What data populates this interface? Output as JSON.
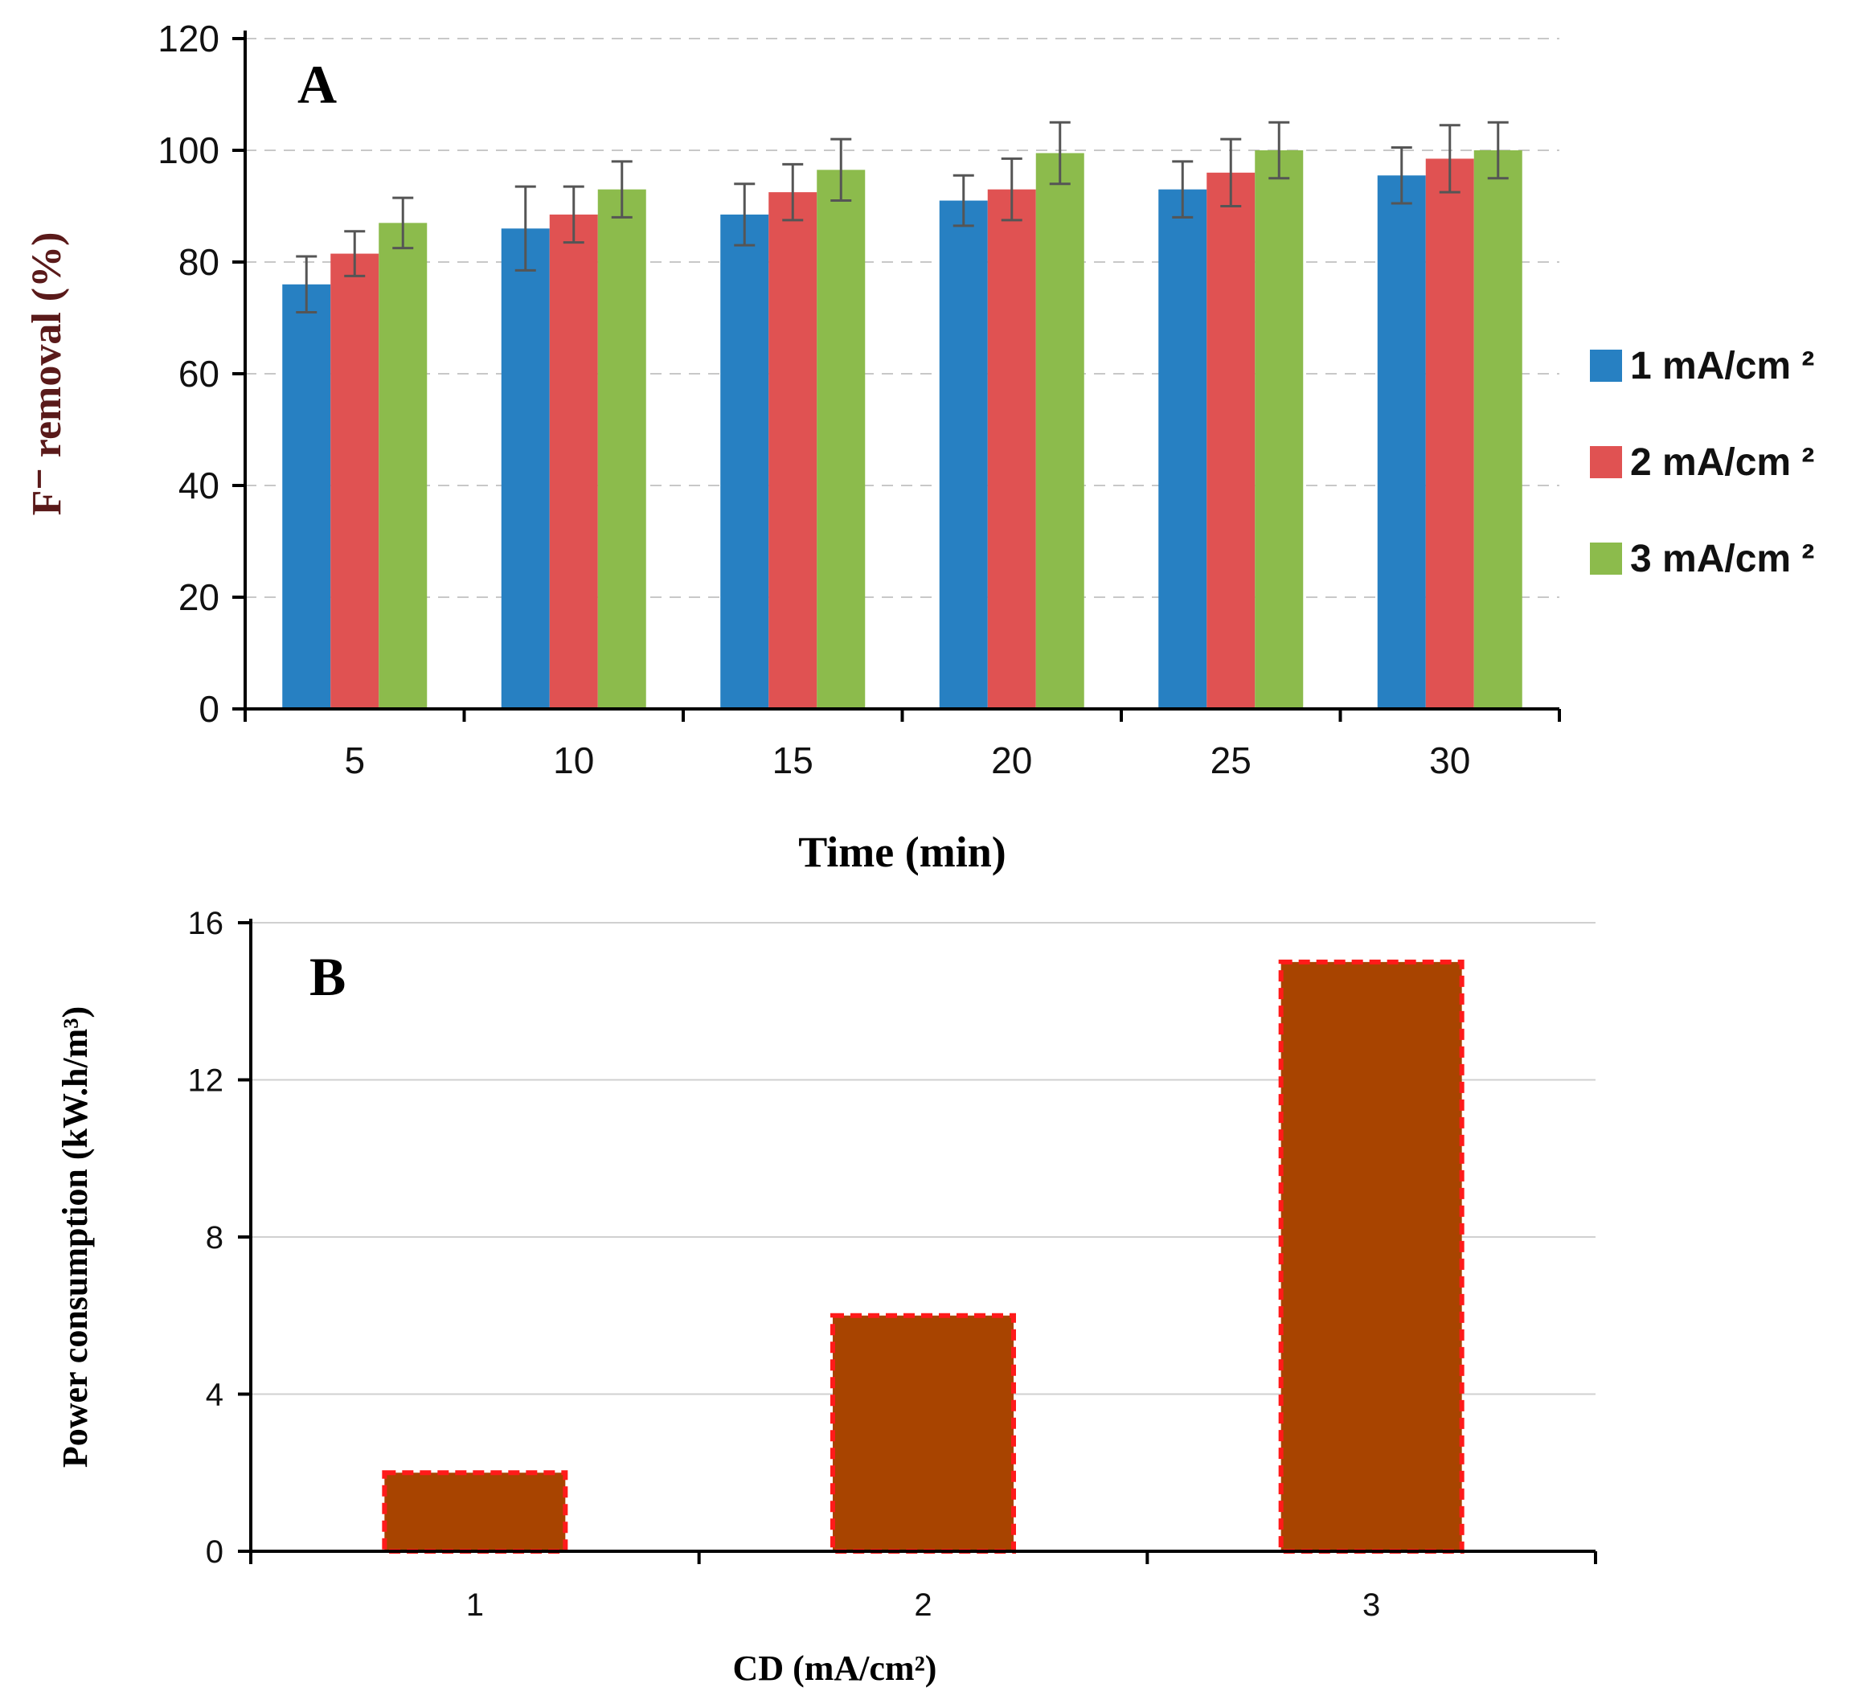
{
  "chart_data": [
    {
      "type": "bar",
      "panel_label": "A",
      "categories": [
        "5",
        "10",
        "15",
        "20",
        "25",
        "30"
      ],
      "series": [
        {
          "name": "1 mA/cm ²",
          "color": "#2780c2",
          "values": [
            76,
            86,
            88.5,
            91,
            93,
            95.5
          ],
          "errors": [
            5,
            7.5,
            5.5,
            4.5,
            5,
            5
          ]
        },
        {
          "name": "2 mA/cm ²",
          "color": "#e05252",
          "values": [
            81.5,
            88.5,
            92.5,
            93,
            96,
            98.5
          ],
          "errors": [
            4,
            5,
            5,
            5.5,
            6,
            6
          ]
        },
        {
          "name": "3 mA/cm ²",
          "color": "#8cbb4c",
          "values": [
            87,
            93,
            96.5,
            99.5,
            100,
            100
          ],
          "errors": [
            4.5,
            5,
            5.5,
            5.5,
            5,
            5
          ]
        }
      ],
      "xlabel": "Time (min)",
      "ylabel": "F⁻ removal (%)",
      "ylim": [
        0,
        120
      ],
      "yticks": [
        0,
        20,
        40,
        60,
        80,
        100,
        120
      ],
      "grid": true,
      "legend": "right"
    },
    {
      "type": "bar",
      "panel_label": "B",
      "categories": [
        "1",
        "2",
        "3"
      ],
      "values": [
        2,
        6,
        15
      ],
      "bar_color": "#a84400",
      "bar_border_color": "#ff1a1a",
      "xlabel": "CD (mA/cm²)",
      "ylabel": "Power consumption (kW.h/m³)",
      "ylim": [
        0,
        16
      ],
      "yticks": [
        0,
        4,
        8,
        12,
        16
      ],
      "grid": true
    }
  ]
}
